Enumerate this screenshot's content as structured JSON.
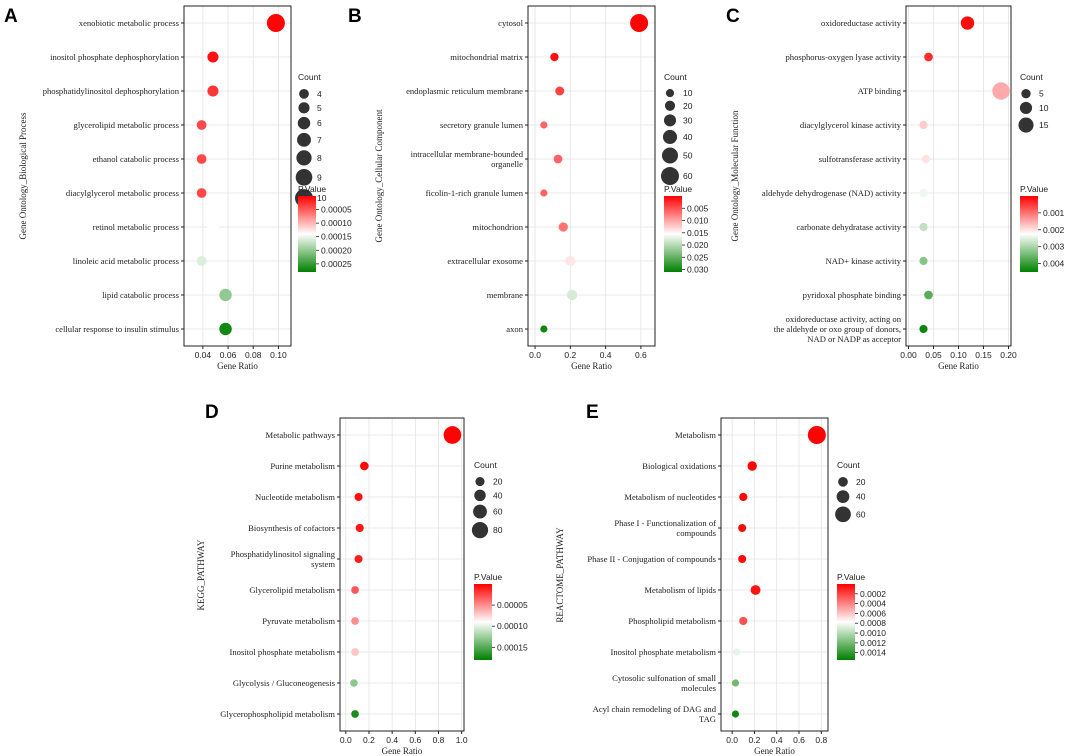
{
  "chart_data": [
    {
      "panel": "A",
      "type": "scatter",
      "xlabel": "Gene Ratio",
      "ylabel": "Gene Ontology_Biological Process",
      "xlim": [
        0.025,
        0.11
      ],
      "xticks": [
        0.04,
        0.06,
        0.08,
        0.1
      ],
      "xtick_labels": [
        "0.04",
        "0.06",
        "0.08",
        "0.10"
      ],
      "count_title": "Count",
      "count_legend": [
        4,
        5,
        6,
        7,
        8,
        9,
        10
      ],
      "count_range": [
        2,
        10
      ],
      "pvalue_title": "P.Value",
      "pvalue_range": [
        0,
        0.00028
      ],
      "pvalue_ticks": [
        5e-05,
        0.0001,
        0.00015,
        0.0002,
        0.00025
      ],
      "pvalue_labels": [
        "0.00005",
        "0.00010",
        "0.00015",
        "0.00020",
        "0.00025"
      ],
      "categories": [
        "xenobiotic metabolic process",
        "inositol phosphate dephosphorylation",
        "phosphatidylinositol dephosphorylation",
        "glycerolipid metabolic process",
        "ethanol catabolic process",
        "diacylglycerol metabolic process",
        "retinol metabolic process",
        "linoleic acid metabolic process",
        "lipid catabolic process",
        "cellular response to insulin stimulus"
      ],
      "x": [
        0.098,
        0.048,
        0.048,
        0.039,
        0.039,
        0.039,
        0.048,
        0.039,
        0.058,
        0.058
      ],
      "count": [
        10,
        5,
        5,
        4,
        4,
        4,
        5,
        4,
        6,
        6
      ],
      "pvalue": [
        2e-06,
        1e-05,
        3e-05,
        4e-05,
        4e-05,
        4e-05,
        0.00014,
        0.00016,
        0.0002,
        0.00027
      ]
    },
    {
      "panel": "B",
      "type": "scatter",
      "xlabel": "Gene Ratio",
      "ylabel": "Gene Ontology_Cellular Component",
      "xlim": [
        -0.04,
        0.68
      ],
      "xticks": [
        0.0,
        0.2,
        0.4,
        0.6
      ],
      "xtick_labels": [
        "0.0",
        "0.2",
        "0.4",
        "0.6"
      ],
      "count_title": "Count",
      "count_legend": [
        10,
        20,
        30,
        40,
        50,
        60
      ],
      "count_range": [
        4,
        60
      ],
      "pvalue_title": "P.Value",
      "pvalue_range": [
        0,
        0.031
      ],
      "pvalue_ticks": [
        0.005,
        0.01,
        0.015,
        0.02,
        0.025,
        0.03
      ],
      "pvalue_labels": [
        "0.005",
        "0.010",
        "0.015",
        "0.020",
        "0.025",
        "0.030"
      ],
      "categories": [
        "cytosol",
        "mitochondrial matrix",
        "endoplasmic reticulum membrane",
        "secretory granule lumen",
        "intracellular membrane-bounded organelle",
        "ficolin-1-rich granule lumen",
        "mitochondrion",
        "extracellular exosome",
        "membrane",
        "axon"
      ],
      "category_lines": [
        [
          "cytosol"
        ],
        [
          "mitochondrial matrix"
        ],
        [
          "endoplasmic reticulum membrane"
        ],
        [
          "secretory granule lumen"
        ],
        [
          "intracellular membrane-bounded",
          "organelle"
        ],
        [
          "ficolin-1-rich granule lumen"
        ],
        [
          "mitochondrion"
        ],
        [
          "extracellular exosome"
        ],
        [
          "membrane"
        ],
        [
          "axon"
        ]
      ],
      "x": [
        0.59,
        0.11,
        0.14,
        0.05,
        0.13,
        0.05,
        0.16,
        0.2,
        0.21,
        0.05
      ],
      "count": [
        60,
        11,
        14,
        5,
        13,
        5,
        16,
        20,
        21,
        5
      ],
      "pvalue": [
        0.0001,
        0.001,
        0.004,
        0.006,
        0.006,
        0.006,
        0.007,
        0.014,
        0.018,
        0.03
      ]
    },
    {
      "panel": "C",
      "type": "scatter",
      "xlabel": "Gene Ratio",
      "ylabel": "Gene Ontology_Molecular Function",
      "xlim": [
        -0.005,
        0.205
      ],
      "xticks": [
        0.0,
        0.05,
        0.1,
        0.15,
        0.2
      ],
      "xtick_labels": [
        "0.00",
        "0.05",
        "0.10",
        "0.15",
        "0.20"
      ],
      "count_title": "Count",
      "count_legend": [
        5,
        10,
        15
      ],
      "count_range": [
        1,
        20
      ],
      "pvalue_title": "P.Value",
      "pvalue_range": [
        0,
        0.0045
      ],
      "pvalue_ticks": [
        0.001,
        0.002,
        0.003,
        0.004
      ],
      "pvalue_labels": [
        "0.001",
        "0.002",
        "0.003",
        "0.004"
      ],
      "categories": [
        "oxidoreductase activity",
        "phosphorus-oxygen lyase activity",
        "ATP binding",
        "diacylglycerol kinase activity",
        "sulfotransferase activity",
        "aldehyde dehydrogenase (NAD) activity",
        "carbonate dehydratase activity",
        "NAD+ kinase activity",
        "pyridoxal phosphate binding",
        "oxidoreductase activity, acting on the aldehyde or oxo group of donors, NAD or NADP as acceptor"
      ],
      "category_lines": [
        [
          "oxidoreductase activity"
        ],
        [
          "phosphorus-oxygen lyase activity"
        ],
        [
          "ATP binding"
        ],
        [
          "diacylglycerol kinase activity"
        ],
        [
          "sulfotransferase activity"
        ],
        [
          "aldehyde dehydrogenase (NAD) activity"
        ],
        [
          "carbonate dehydratase activity"
        ],
        [
          "NAD+ kinase activity"
        ],
        [
          "pyridoxal phosphate binding"
        ],
        [
          "oxidoreductase activity, acting on",
          "the aldehyde or oxo group of donors,",
          "NAD or NADP as acceptor"
        ]
      ],
      "x": [
        0.118,
        0.04,
        0.185,
        0.03,
        0.035,
        0.03,
        0.03,
        0.03,
        0.04,
        0.03
      ],
      "count": [
        12,
        4,
        19,
        3,
        3,
        3,
        3,
        3,
        4,
        3
      ],
      "pvalue": [
        0.0001,
        0.0004,
        0.0015,
        0.0018,
        0.002,
        0.0024,
        0.0028,
        0.0033,
        0.0037,
        0.0044
      ]
    },
    {
      "panel": "D",
      "type": "scatter",
      "xlabel": "Gene Ratio",
      "ylabel": "KEGG_PATHWAY",
      "xlim": [
        -0.05,
        1.02
      ],
      "xticks": [
        0.0,
        0.2,
        0.4,
        0.6,
        0.8,
        1.0
      ],
      "xtick_labels": [
        "0.0",
        "0.2",
        "0.4",
        "0.6",
        "0.8",
        "1.0"
      ],
      "count_title": "Count",
      "count_legend": [
        20,
        40,
        60,
        80
      ],
      "count_range": [
        2,
        95
      ],
      "pvalue_title": "P.Value",
      "pvalue_range": [
        0,
        0.00018
      ],
      "pvalue_ticks": [
        5e-05,
        0.0001,
        0.00015
      ],
      "pvalue_labels": [
        "0.00005",
        "0.00010",
        "0.00015"
      ],
      "categories": [
        "Metabolic pathways",
        "Purine metabolism",
        "Nucleotide metabolism",
        "Biosynthesis of cofactors",
        "Phosphatidylinositol signaling system",
        "Glycerolipid metabolism",
        "Pyruvate metabolism",
        "Inositol phosphate metabolism",
        "Glycolysis / Gluconeogenesis",
        "Glycerophospholipid metabolism"
      ],
      "category_lines": [
        [
          "Metabolic pathways"
        ],
        [
          "Purine metabolism"
        ],
        [
          "Nucleotide metabolism"
        ],
        [
          "Biosynthesis of cofactors"
        ],
        [
          "Phosphatidylinositol signaling",
          "system"
        ],
        [
          "Glycerolipid metabolism"
        ],
        [
          "Pyruvate metabolism"
        ],
        [
          "Inositol phosphate metabolism"
        ],
        [
          "Glycolysis / Gluconeogenesis"
        ],
        [
          "Glycerophospholipid metabolism"
        ]
      ],
      "x": [
        0.92,
        0.16,
        0.11,
        0.12,
        0.11,
        0.08,
        0.08,
        0.08,
        0.07,
        0.08
      ],
      "count": [
        92,
        16,
        11,
        12,
        11,
        8,
        8,
        8,
        7,
        8
      ],
      "pvalue": [
        1e-06,
        3e-06,
        5e-06,
        8e-06,
        1e-05,
        3e-05,
        5e-05,
        7e-05,
        0.00013,
        0.00017
      ]
    },
    {
      "panel": "E",
      "type": "scatter",
      "xlabel": "Gene Ratio",
      "ylabel": "REACTOME_PATHWAY",
      "xlim": [
        -0.1,
        0.86
      ],
      "xticks": [
        0.0,
        0.2,
        0.4,
        0.6,
        0.8
      ],
      "xtick_labels": [
        "0.0",
        "0.2",
        "0.4",
        "0.6",
        "0.8"
      ],
      "count_title": "Count",
      "count_legend": [
        20,
        40,
        60
      ],
      "count_range": [
        2,
        75
      ],
      "pvalue_title": "P.Value",
      "pvalue_range": [
        0,
        0.00155
      ],
      "pvalue_ticks": [
        0.0002,
        0.0004,
        0.0006,
        0.0008,
        0.001,
        0.0012,
        0.0014
      ],
      "pvalue_labels": [
        "0.0002",
        "0.0004",
        "0.0006",
        "0.0008",
        "0.0010",
        "0.0012",
        "0.0014"
      ],
      "categories": [
        "Metabolism",
        "Biological oxidations",
        "Metabolism of nucleotides",
        "Phase I - Functionalization of compounds",
        "Phase II - Conjugation of compounds",
        "Metabolism of lipids",
        "Phospholipid metabolism",
        "Inositol phosphate metabolism",
        "Cytosolic sulfonation of small molecules",
        "Acyl chain remodeling of DAG and TAG"
      ],
      "category_lines": [
        [
          "Metabolism"
        ],
        [
          "Biological oxidations"
        ],
        [
          "Metabolism of nucleotides"
        ],
        [
          "Phase I - Functionalization of",
          "compounds"
        ],
        [
          "Phase II - Conjugation of compounds"
        ],
        [
          "Metabolism of lipids"
        ],
        [
          "Phospholipid metabolism"
        ],
        [
          "Inositol phosphate metabolism"
        ],
        [
          "Cytosolic sulfonation of small",
          "molecules"
        ],
        [
          "Acyl chain remodeling of DAG and",
          "TAG"
        ]
      ],
      "x": [
        0.76,
        0.18,
        0.1,
        0.09,
        0.09,
        0.21,
        0.1,
        0.04,
        0.03,
        0.03
      ],
      "count": [
        75,
        18,
        10,
        9,
        9,
        21,
        10,
        4,
        3,
        3
      ],
      "pvalue": [
        1e-05,
        1e-05,
        2e-05,
        3e-05,
        3e-05,
        6e-05,
        0.00025,
        0.00085,
        0.0012,
        0.0015
      ]
    }
  ]
}
